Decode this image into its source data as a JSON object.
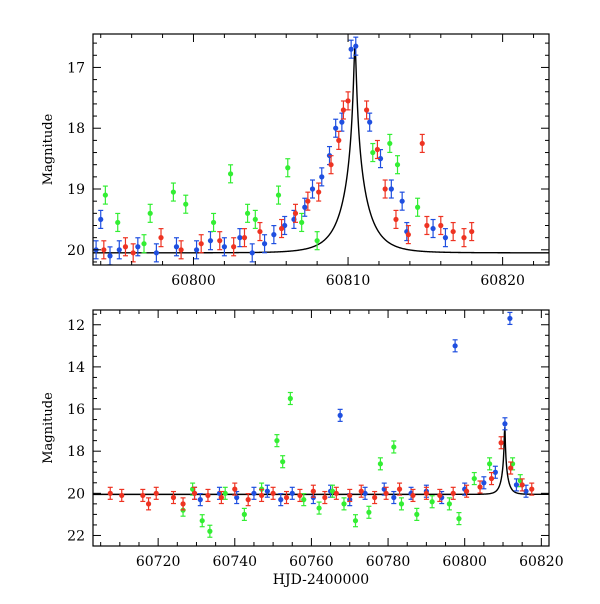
{
  "chart_data": [
    {
      "type": "scatter",
      "title": "",
      "xlabel": "",
      "ylabel": "Magnitude",
      "xlim": [
        60793.5,
        60823
      ],
      "ylim": [
        20.25,
        16.45
      ],
      "y_inverted": true,
      "x_ticks": [
        "60800",
        "60810",
        "60820"
      ],
      "y_ticks": [
        "17",
        "18",
        "19",
        "20"
      ],
      "series": [
        {
          "color": "#1f4fe0",
          "points": [
            [
              60793.7,
              20.0
            ],
            [
              60794.0,
              19.5
            ],
            [
              60794.6,
              20.1
            ],
            [
              60795.2,
              20.0
            ],
            [
              60796.4,
              19.95
            ],
            [
              60797.6,
              20.05
            ],
            [
              60798.9,
              19.95
            ],
            [
              60800.2,
              20.0
            ],
            [
              60801.1,
              19.85
            ],
            [
              60802.0,
              19.95
            ],
            [
              60803.0,
              19.8
            ],
            [
              60803.8,
              20.05
            ],
            [
              60804.6,
              19.9
            ],
            [
              60805.2,
              19.75
            ],
            [
              60805.9,
              19.6
            ],
            [
              60806.5,
              19.5
            ],
            [
              60807.2,
              19.3
            ],
            [
              60807.7,
              19.0
            ],
            [
              60808.3,
              18.8
            ],
            [
              60808.8,
              18.45
            ],
            [
              60809.2,
              18.0
            ],
            [
              60809.6,
              17.9
            ],
            [
              60810.2,
              16.7
            ],
            [
              60810.5,
              16.65
            ],
            [
              60811.4,
              17.9
            ],
            [
              60812.1,
              18.5
            ],
            [
              60812.8,
              19.0
            ],
            [
              60813.5,
              19.2
            ],
            [
              60813.8,
              19.7
            ],
            [
              60815.5,
              19.65
            ],
            [
              60816.3,
              19.8
            ]
          ]
        },
        {
          "color": "#33ee33",
          "points": [
            [
              60794.3,
              19.1
            ],
            [
              60795.1,
              19.55
            ],
            [
              60796.8,
              19.9
            ],
            [
              60797.2,
              19.4
            ],
            [
              60798.7,
              19.05
            ],
            [
              60799.5,
              19.25
            ],
            [
              60801.3,
              19.55
            ],
            [
              60802.4,
              18.75
            ],
            [
              60803.5,
              19.4
            ],
            [
              60804.0,
              19.5
            ],
            [
              60805.5,
              19.1
            ],
            [
              60806.1,
              18.65
            ],
            [
              60807.0,
              19.55
            ],
            [
              60808.0,
              19.85
            ],
            [
              60811.6,
              18.4
            ],
            [
              60812.7,
              18.25
            ],
            [
              60813.2,
              18.6
            ],
            [
              60814.5,
              19.3
            ]
          ]
        },
        {
          "color": "#ee3322",
          "points": [
            [
              60794.2,
              20.0
            ],
            [
              60795.6,
              19.95
            ],
            [
              60796.1,
              20.05
            ],
            [
              60797.9,
              19.8
            ],
            [
              60799.2,
              20.0
            ],
            [
              60800.5,
              19.9
            ],
            [
              60801.7,
              19.85
            ],
            [
              60802.6,
              19.95
            ],
            [
              60803.3,
              19.8
            ],
            [
              60804.3,
              19.7
            ],
            [
              60805.7,
              19.65
            ],
            [
              60806.6,
              19.4
            ],
            [
              60807.4,
              19.2
            ],
            [
              60808.1,
              19.05
            ],
            [
              60808.9,
              18.6
            ],
            [
              60809.4,
              18.2
            ],
            [
              60809.7,
              17.7
            ],
            [
              60810.0,
              17.55
            ],
            [
              60811.2,
              17.7
            ],
            [
              60811.9,
              18.35
            ],
            [
              60812.4,
              19.0
            ],
            [
              60813.1,
              19.5
            ],
            [
              60813.9,
              19.75
            ],
            [
              60814.8,
              18.25
            ],
            [
              60815.1,
              19.6
            ],
            [
              60816.0,
              19.6
            ],
            [
              60816.8,
              19.7
            ],
            [
              60817.5,
              19.8
            ],
            [
              60818.0,
              19.7
            ]
          ]
        }
      ],
      "model_curve": {
        "color": "#000000",
        "baseline_mag": 20.05,
        "peak_mag": 16.65,
        "peak_time": 60810.45,
        "time_scale_days": 1.6
      }
    },
    {
      "type": "scatter",
      "title": "",
      "xlabel": "HJD-2400000",
      "ylabel": "Magnitude",
      "xlim": [
        60703,
        60822
      ],
      "ylim": [
        22.5,
        11.3
      ],
      "y_inverted": true,
      "x_ticks": [
        "60720",
        "60740",
        "60760",
        "60780",
        "60800",
        "60820"
      ],
      "y_ticks": [
        "12",
        "14",
        "16",
        "18",
        "20",
        "22"
      ],
      "series": [
        {
          "color": "#1f4fe0",
          "points": [
            [
              60729.5,
              20.0
            ],
            [
              60731.0,
              20.3
            ],
            [
              60736.0,
              20.0
            ],
            [
              60740.5,
              20.2
            ],
            [
              60745.0,
              20.0
            ],
            [
              60748.5,
              19.9
            ],
            [
              60752.0,
              20.3
            ],
            [
              60755.0,
              20.0
            ],
            [
              60760.5,
              20.2
            ],
            [
              60765.0,
              19.9
            ],
            [
              60767.5,
              16.3
            ],
            [
              60770.0,
              20.3
            ],
            [
              60774.0,
              20.0
            ],
            [
              60779.0,
              19.8
            ],
            [
              60781.5,
              20.2
            ],
            [
              60786.0,
              20.0
            ],
            [
              60790.0,
              19.9
            ],
            [
              60794.0,
              20.2
            ],
            [
              60797.5,
              13.0
            ],
            [
              60800.0,
              19.8
            ],
            [
              60805.0,
              19.5
            ],
            [
              60808.0,
              19.0
            ],
            [
              60810.5,
              16.7
            ],
            [
              60811.8,
              11.7
            ],
            [
              60813.5,
              19.6
            ],
            [
              60816.0,
              19.9
            ]
          ]
        },
        {
          "color": "#33ee33",
          "points": [
            [
              60726.5,
              20.8
            ],
            [
              60729.0,
              19.8
            ],
            [
              60731.5,
              21.3
            ],
            [
              60733.5,
              21.8
            ],
            [
              60737.5,
              20.0
            ],
            [
              60742.5,
              21.0
            ],
            [
              60747.0,
              19.8
            ],
            [
              60751.0,
              17.5
            ],
            [
              60752.5,
              18.5
            ],
            [
              60754.5,
              15.5
            ],
            [
              60758.0,
              20.3
            ],
            [
              60762.0,
              20.7
            ],
            [
              60765.5,
              19.9
            ],
            [
              60768.5,
              20.5
            ],
            [
              60771.5,
              21.3
            ],
            [
              60775.0,
              20.9
            ],
            [
              60778.0,
              18.6
            ],
            [
              60781.5,
              17.8
            ],
            [
              60783.5,
              20.5
            ],
            [
              60787.5,
              21.0
            ],
            [
              60791.5,
              20.4
            ],
            [
              60796.0,
              20.5
            ],
            [
              60798.5,
              21.2
            ],
            [
              60802.5,
              19.3
            ],
            [
              60806.5,
              18.6
            ],
            [
              60812.5,
              18.6
            ],
            [
              60814.5,
              19.4
            ]
          ]
        },
        {
          "color": "#ee3322",
          "points": [
            [
              60707.5,
              20.0
            ],
            [
              60710.5,
              20.1
            ],
            [
              60716.0,
              20.1
            ],
            [
              60717.5,
              20.5
            ],
            [
              60719.5,
              20.0
            ],
            [
              60724.0,
              20.2
            ],
            [
              60726.5,
              20.5
            ],
            [
              60729.5,
              20.0
            ],
            [
              60733.0,
              20.1
            ],
            [
              60736.5,
              20.2
            ],
            [
              60740.0,
              19.8
            ],
            [
              60743.5,
              20.3
            ],
            [
              60747.0,
              20.1
            ],
            [
              60750.0,
              20.0
            ],
            [
              60753.5,
              20.2
            ],
            [
              60757.0,
              20.1
            ],
            [
              60760.5,
              19.9
            ],
            [
              60763.5,
              20.2
            ],
            [
              60766.5,
              20.0
            ],
            [
              60770.0,
              20.1
            ],
            [
              60773.0,
              19.9
            ],
            [
              60776.5,
              20.2
            ],
            [
              60779.5,
              20.0
            ],
            [
              60783.0,
              19.8
            ],
            [
              60786.5,
              20.1
            ],
            [
              60790.0,
              20.0
            ],
            [
              60793.5,
              20.1
            ],
            [
              60797.0,
              20.0
            ],
            [
              60800.5,
              19.9
            ],
            [
              60804.0,
              19.7
            ],
            [
              60807.0,
              19.3
            ],
            [
              60809.5,
              17.6
            ],
            [
              60812.0,
              18.8
            ],
            [
              60815.0,
              19.6
            ],
            [
              60817.5,
              19.8
            ]
          ]
        }
      ],
      "model_curve": {
        "color": "#000000",
        "baseline_mag": 20.05,
        "peak_mag": 16.65,
        "peak_time": 60810.45,
        "time_scale_days": 1.6
      }
    }
  ]
}
